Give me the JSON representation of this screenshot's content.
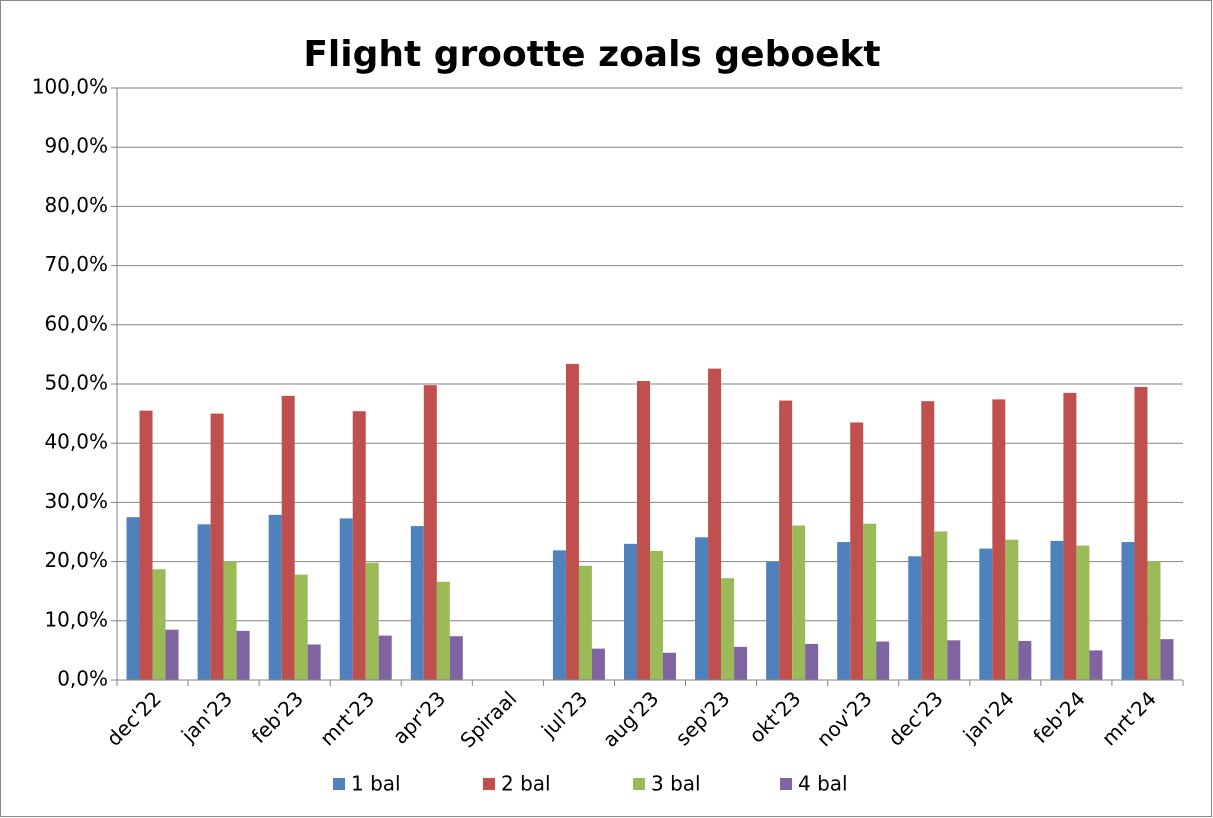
{
  "chart_data": {
    "type": "bar",
    "title": "Flight grootte zoals geboekt",
    "categories": [
      "dec'22",
      "jan'23",
      "feb'23",
      "mrt'23",
      "apr'23",
      "Spiraal",
      "jul'23",
      "aug'23",
      "sep'23",
      "okt'23",
      "nov'23",
      "dec'23",
      "jan'24",
      "feb'24",
      "mrt'24"
    ],
    "series": [
      {
        "name": "1 bal",
        "color": "#4f81bd",
        "values": [
          27.5,
          26.3,
          27.9,
          27.3,
          26.0,
          null,
          21.9,
          23.0,
          24.1,
          20.0,
          23.3,
          20.9,
          22.2,
          23.5,
          23.3
        ]
      },
      {
        "name": "2 bal",
        "color": "#c0504d",
        "values": [
          45.5,
          45.0,
          48.0,
          45.4,
          49.8,
          null,
          53.4,
          50.5,
          52.6,
          47.2,
          43.5,
          47.1,
          47.4,
          48.5,
          49.5
        ]
      },
      {
        "name": "3 bal",
        "color": "#9bbb59",
        "values": [
          18.7,
          20.0,
          17.8,
          19.8,
          16.6,
          null,
          19.3,
          21.8,
          17.2,
          26.1,
          26.4,
          25.1,
          23.7,
          22.7,
          20.0
        ]
      },
      {
        "name": "4 bal",
        "color": "#8064a2",
        "values": [
          8.5,
          8.3,
          6.0,
          7.5,
          7.4,
          null,
          5.3,
          4.6,
          5.6,
          6.1,
          6.5,
          6.7,
          6.6,
          5.0,
          6.9
        ]
      }
    ],
    "ylim": [
      0,
      100
    ],
    "yticks": [
      {
        "value": 0,
        "label": "0,0%"
      },
      {
        "value": 10,
        "label": "10,0%"
      },
      {
        "value": 20,
        "label": "20,0%"
      },
      {
        "value": 30,
        "label": "30,0%"
      },
      {
        "value": 40,
        "label": "40,0%"
      },
      {
        "value": 50,
        "label": "50,0%"
      },
      {
        "value": 60,
        "label": "60,0%"
      },
      {
        "value": 70,
        "label": "70,0%"
      },
      {
        "value": 80,
        "label": "80,0%"
      },
      {
        "value": 90,
        "label": "90,0%"
      },
      {
        "value": 100,
        "label": "100,0%"
      }
    ],
    "grid": true,
    "legend": "bottom"
  }
}
